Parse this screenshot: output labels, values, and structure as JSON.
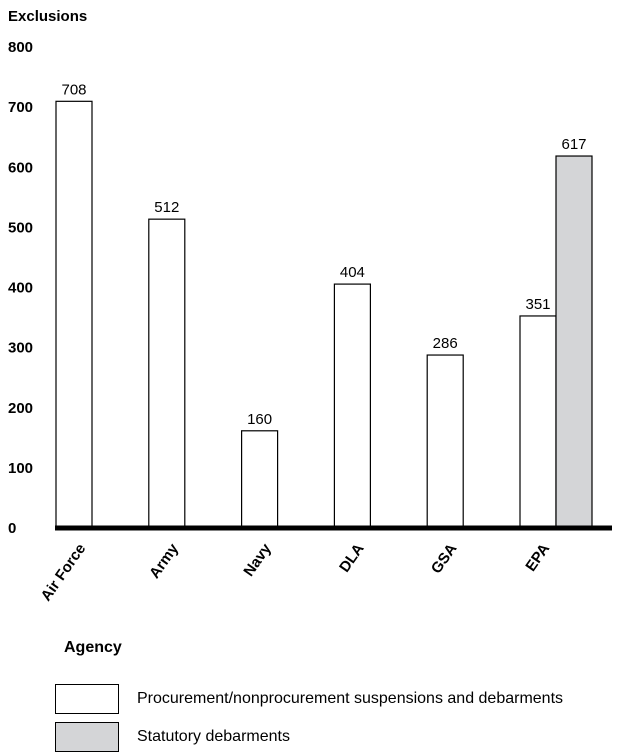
{
  "chart_data": {
    "type": "bar",
    "ylabel": "Exclusions",
    "xlabel": "Agency",
    "ylim": [
      0,
      800
    ],
    "yticks": [
      "0",
      "100",
      "200",
      "300",
      "400",
      "500",
      "600",
      "700",
      "800"
    ],
    "categories": [
      "Air Force",
      "Army",
      "Navy",
      "DLA",
      "GSA",
      "EPA"
    ],
    "series": [
      {
        "name": "Procurement/nonprocurement suspensions and debarments",
        "color": "#ffffff",
        "values": [
          708,
          512,
          160,
          404,
          286,
          351
        ]
      },
      {
        "name": "Statutory debarments",
        "color": "#d4d5d7",
        "values": [
          null,
          null,
          null,
          null,
          null,
          617
        ]
      }
    ],
    "legend_position": "bottom-left",
    "grid": false
  }
}
